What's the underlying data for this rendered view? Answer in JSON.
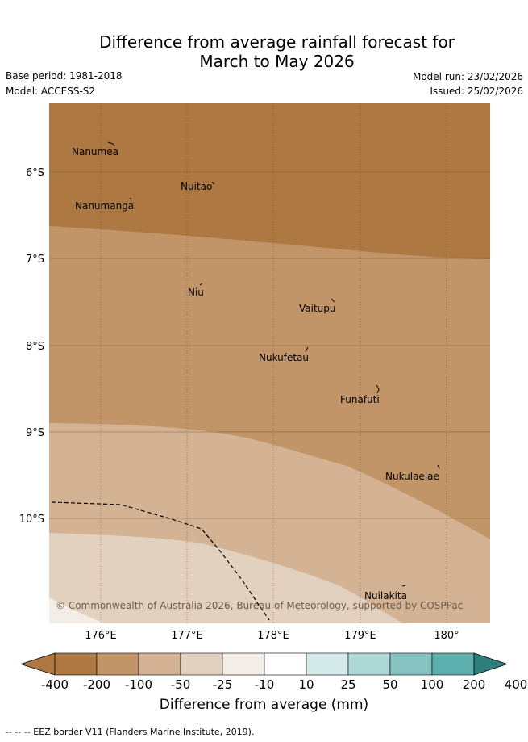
{
  "header": {
    "title_line1": "Difference from average rainfall forecast for",
    "title_line2": "March to May 2026",
    "base_period": "Base period: 1981-2018",
    "model": "Model: ACCESS-S2",
    "model_run": "Model run: 23/02/2026",
    "issued": "Issued: 25/02/2026"
  },
  "map": {
    "lat_labels": [
      "6°S",
      "7°S",
      "8°S",
      "9°S",
      "10°S"
    ],
    "lon_labels": [
      "176°E",
      "177°E",
      "178°E",
      "179°E",
      "180°"
    ],
    "places": [
      "Nanumea",
      "Nuitao",
      "Nanumanga",
      "Niu",
      "Vaitupu",
      "Nukufetau",
      "Funafuti",
      "Nukulaelae",
      "Nuilakita"
    ],
    "copyright": "© Commonwealth of Australia 2026, Bureau of Meteorology, supported by COSPPac"
  },
  "colorbar": {
    "ticks": [
      "-400",
      "-200",
      "-100",
      "-50",
      "-25",
      "-10",
      "10",
      "25",
      "50",
      "100",
      "200",
      "400"
    ],
    "colors": [
      "#ad7841",
      "#c29568",
      "#d3b393",
      "#e3d1bf",
      "#f2ede6",
      "#ffffff",
      "#d3eae8",
      "#add8d6",
      "#86c2c0",
      "#5db0ae",
      "#369d9b",
      "#2d7e7c"
    ],
    "title": "Difference from average (mm)"
  },
  "footnote": "--  --  -- EEZ border V11 (Flanders Marine Institute, 2019)."
}
